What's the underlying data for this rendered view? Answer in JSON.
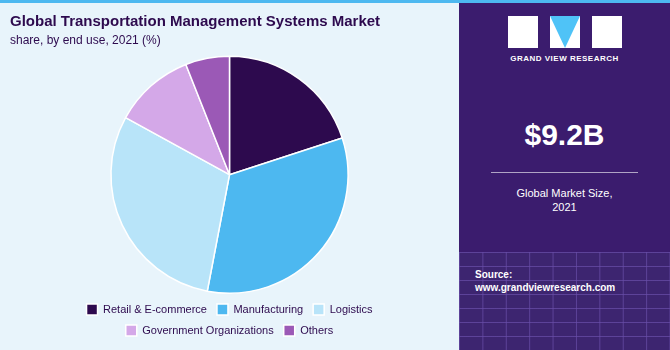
{
  "chart_data": {
    "type": "pie",
    "title": "Global Transportation Management Systems Market",
    "subtitle": "share, by end use, 2021 (%)",
    "categories": [
      "Retail & E-commerce",
      "Manufacturing",
      "Logistics",
      "Government Organizations",
      "Others"
    ],
    "values": [
      20,
      33,
      30,
      11,
      6
    ],
    "colors": [
      "#2d0a4e",
      "#4db8f0",
      "#b8e4f9",
      "#d4a8e8",
      "#9b59b6"
    ],
    "legend": "bottom",
    "annotations": [
      "GRAND VIEW RESEARCH",
      "$9.2B",
      "Global Market Size,\n2021",
      "Source:\nwww.grandviewresearch.com"
    ]
  }
}
